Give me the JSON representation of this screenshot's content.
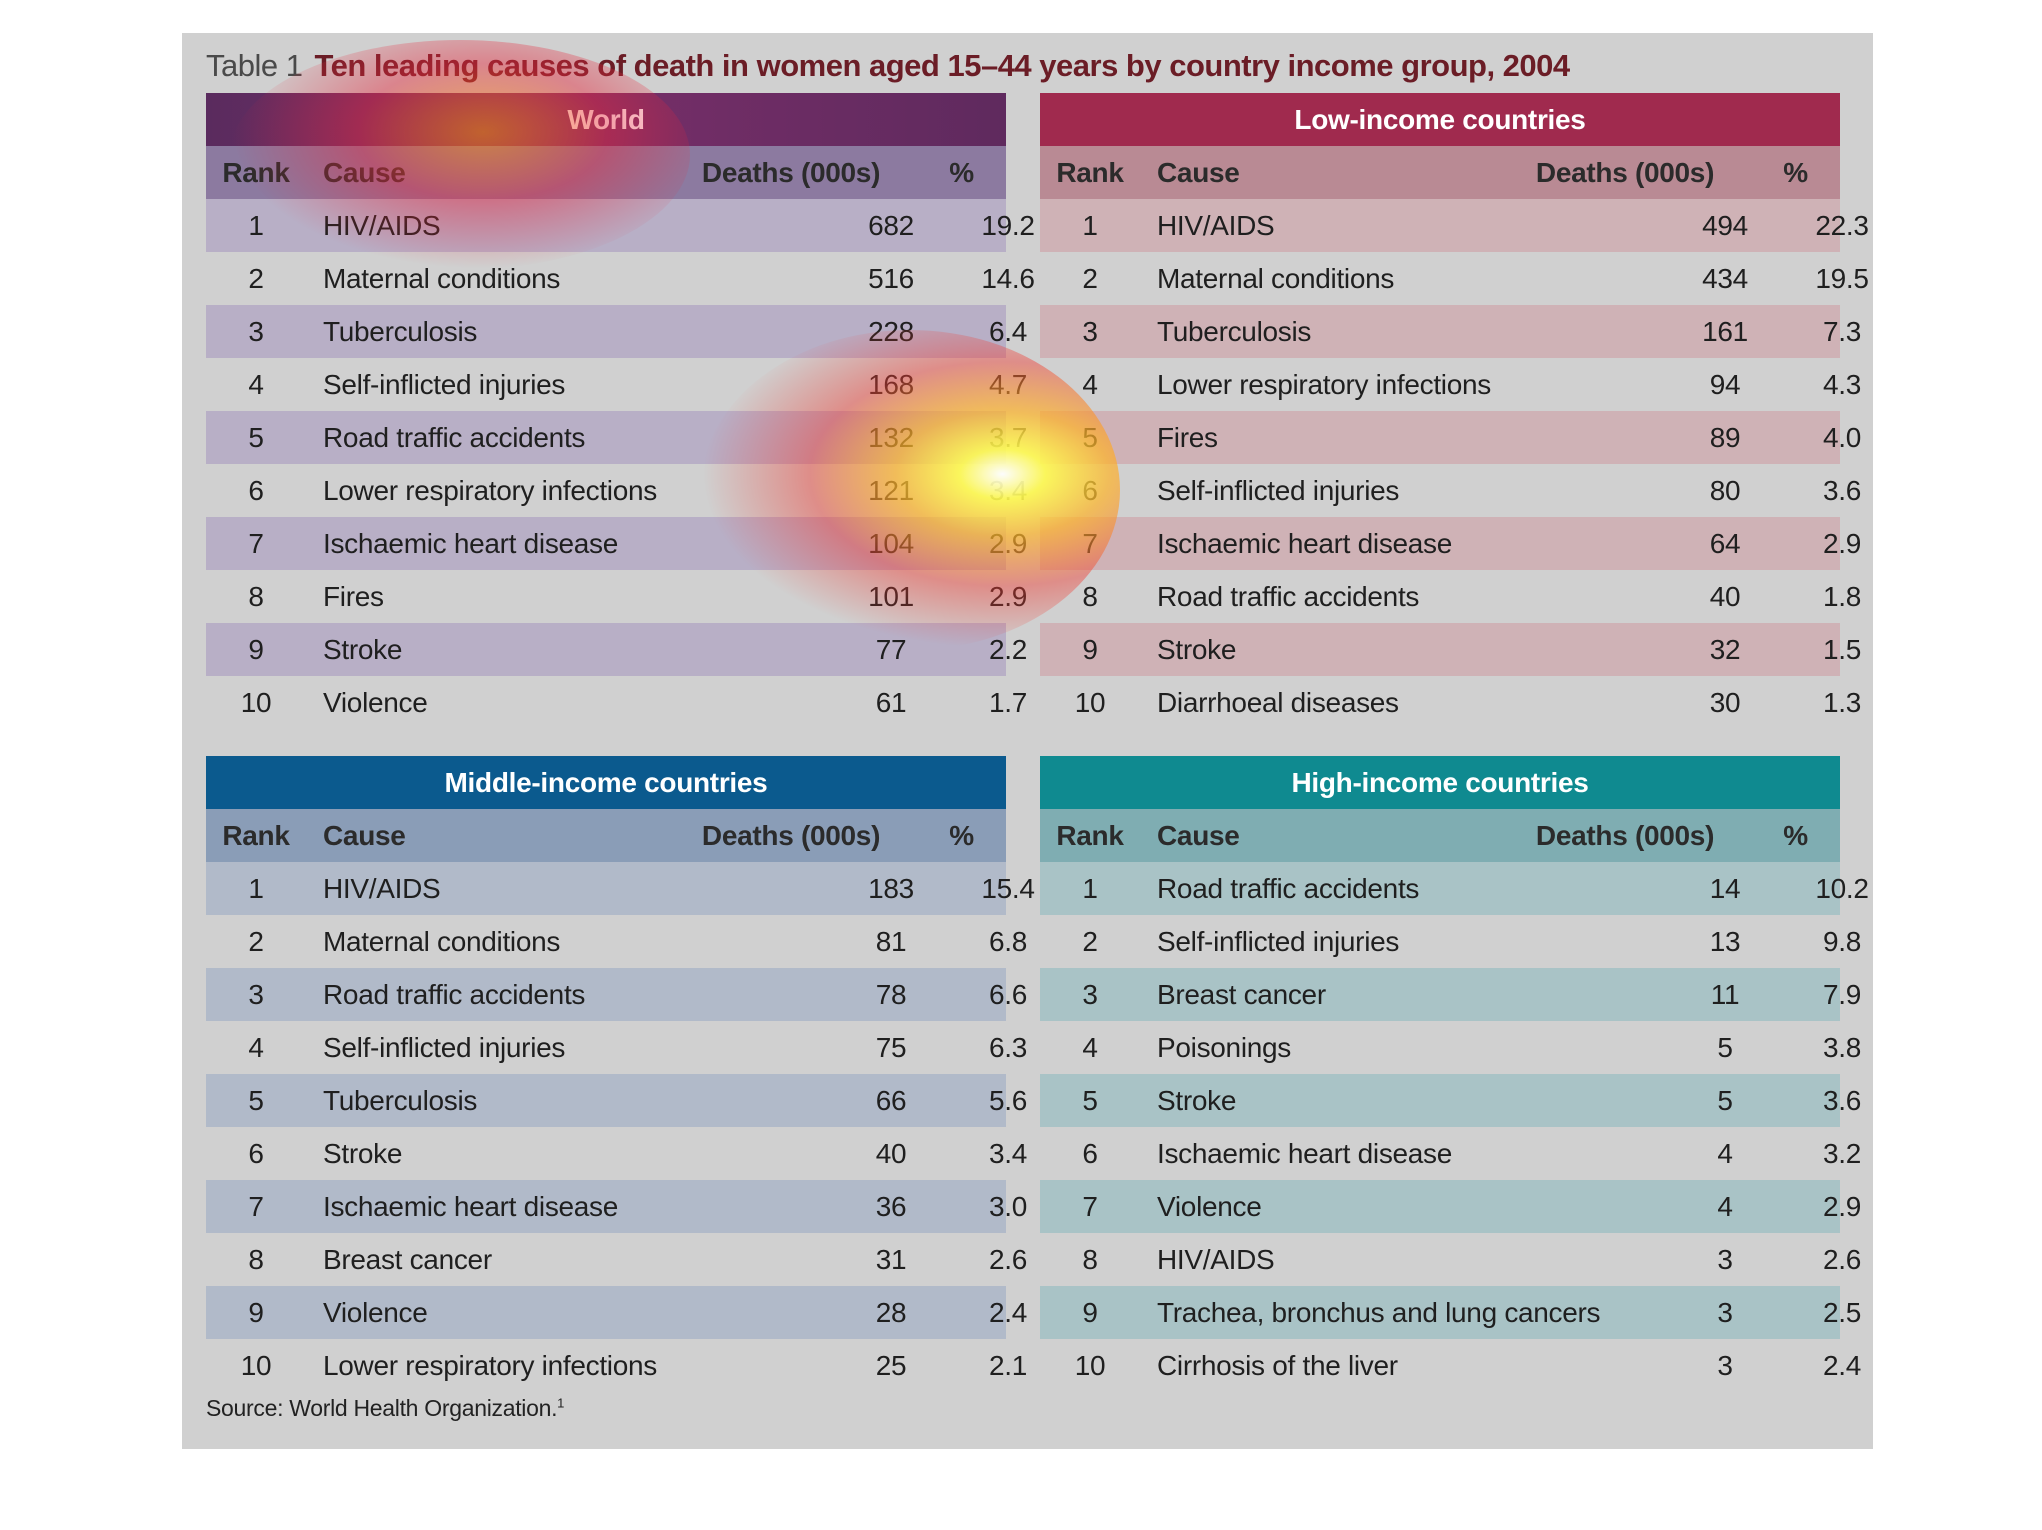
{
  "table_label": "Table 1",
  "title": "Ten leading causes of death in women aged 15–44 years by country income group, 2004",
  "headers": {
    "rank": "Rank",
    "cause": "Cause",
    "deaths": "Deaths (000s)",
    "pct": "%"
  },
  "blocks": [
    {
      "title": "World",
      "rows": [
        {
          "rank": "1",
          "cause": "HIV/AIDS",
          "deaths": "682",
          "pct": "19.2"
        },
        {
          "rank": "2",
          "cause": "Maternal conditions",
          "deaths": "516",
          "pct": "14.6"
        },
        {
          "rank": "3",
          "cause": "Tuberculosis",
          "deaths": "228",
          "pct": "6.4"
        },
        {
          "rank": "4",
          "cause": "Self-inflicted injuries",
          "deaths": "168",
          "pct": "4.7"
        },
        {
          "rank": "5",
          "cause": "Road traffic accidents",
          "deaths": "132",
          "pct": "3.7"
        },
        {
          "rank": "6",
          "cause": "Lower respiratory infections",
          "deaths": "121",
          "pct": "3.4"
        },
        {
          "rank": "7",
          "cause": "Ischaemic heart disease",
          "deaths": "104",
          "pct": "2.9"
        },
        {
          "rank": "8",
          "cause": "Fires",
          "deaths": "101",
          "pct": "2.9"
        },
        {
          "rank": "9",
          "cause": "Stroke",
          "deaths": "77",
          "pct": "2.2"
        },
        {
          "rank": "10",
          "cause": "Violence",
          "deaths": "61",
          "pct": "1.7"
        }
      ]
    },
    {
      "title": "Low-income countries",
      "rows": [
        {
          "rank": "1",
          "cause": "HIV/AIDS",
          "deaths": "494",
          "pct": "22.3"
        },
        {
          "rank": "2",
          "cause": "Maternal conditions",
          "deaths": "434",
          "pct": "19.5"
        },
        {
          "rank": "3",
          "cause": "Tuberculosis",
          "deaths": "161",
          "pct": "7.3"
        },
        {
          "rank": "4",
          "cause": "Lower respiratory infections",
          "deaths": "94",
          "pct": "4.3"
        },
        {
          "rank": "5",
          "cause": "Fires",
          "deaths": "89",
          "pct": "4.0"
        },
        {
          "rank": "6",
          "cause": "Self-inflicted injuries",
          "deaths": "80",
          "pct": "3.6"
        },
        {
          "rank": "7",
          "cause": "Ischaemic heart disease",
          "deaths": "64",
          "pct": "2.9"
        },
        {
          "rank": "8",
          "cause": "Road traffic accidents",
          "deaths": "40",
          "pct": "1.8"
        },
        {
          "rank": "9",
          "cause": "Stroke",
          "deaths": "32",
          "pct": "1.5"
        },
        {
          "rank": "10",
          "cause": "Diarrhoeal diseases",
          "deaths": "30",
          "pct": "1.3"
        }
      ]
    },
    {
      "title": "Middle-income countries",
      "rows": [
        {
          "rank": "1",
          "cause": "HIV/AIDS",
          "deaths": "183",
          "pct": "15.4"
        },
        {
          "rank": "2",
          "cause": "Maternal conditions",
          "deaths": "81",
          "pct": "6.8"
        },
        {
          "rank": "3",
          "cause": "Road traffic accidents",
          "deaths": "78",
          "pct": "6.6"
        },
        {
          "rank": "4",
          "cause": "Self-inflicted injuries",
          "deaths": "75",
          "pct": "6.3"
        },
        {
          "rank": "5",
          "cause": "Tuberculosis",
          "deaths": "66",
          "pct": "5.6"
        },
        {
          "rank": "6",
          "cause": "Stroke",
          "deaths": "40",
          "pct": "3.4"
        },
        {
          "rank": "7",
          "cause": "Ischaemic heart disease",
          "deaths": "36",
          "pct": "3.0"
        },
        {
          "rank": "8",
          "cause": "Breast cancer",
          "deaths": "31",
          "pct": "2.6"
        },
        {
          "rank": "9",
          "cause": "Violence",
          "deaths": "28",
          "pct": "2.4"
        },
        {
          "rank": "10",
          "cause": "Lower respiratory infections",
          "deaths": "25",
          "pct": "2.1"
        }
      ]
    },
    {
      "title": "High-income countries",
      "rows": [
        {
          "rank": "1",
          "cause": "Road traffic accidents",
          "deaths": "14",
          "pct": "10.2"
        },
        {
          "rank": "2",
          "cause": "Self-inflicted injuries",
          "deaths": "13",
          "pct": "9.8"
        },
        {
          "rank": "3",
          "cause": "Breast cancer",
          "deaths": "11",
          "pct": "7.9"
        },
        {
          "rank": "4",
          "cause": "Poisonings",
          "deaths": "5",
          "pct": "3.8"
        },
        {
          "rank": "5",
          "cause": "Stroke",
          "deaths": "5",
          "pct": "3.6"
        },
        {
          "rank": "6",
          "cause": "Ischaemic heart disease",
          "deaths": "4",
          "pct": "3.2"
        },
        {
          "rank": "7",
          "cause": "Violence",
          "deaths": "4",
          "pct": "2.9"
        },
        {
          "rank": "8",
          "cause": "HIV/AIDS",
          "deaths": "3",
          "pct": "2.6"
        },
        {
          "rank": "9",
          "cause": "Trachea, bronchus and lung cancers",
          "deaths": "3",
          "pct": "2.5"
        },
        {
          "rank": "10",
          "cause": "Cirrhosis of the liver",
          "deaths": "3",
          "pct": "2.4"
        }
      ]
    }
  ],
  "source": "Source: World Health Organization.",
  "source_ref": "1"
}
